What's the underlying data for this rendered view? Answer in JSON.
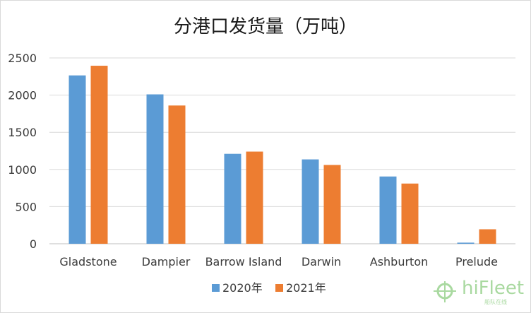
{
  "chart_data": {
    "type": "bar",
    "title": "分港口发货量（万吨）",
    "categories": [
      "Gladstone",
      "Dampier",
      "Barrow Island",
      "Darwin",
      "Ashburton",
      "Prelude"
    ],
    "series": [
      {
        "name": "2020年",
        "color": "#5b9bd5",
        "values": [
          2265,
          2010,
          1210,
          1135,
          905,
          15
        ]
      },
      {
        "name": "2021年",
        "color": "#ed7d31",
        "values": [
          2395,
          1860,
          1240,
          1060,
          810,
          195
        ]
      }
    ],
    "yticks": [
      "0",
      "500",
      "1000",
      "1500",
      "2000",
      "2500"
    ],
    "ylim": [
      0,
      2500
    ],
    "grid": true,
    "legend": "bottom"
  },
  "watermark": {
    "brand": "hiFleet",
    "tagline": "船队在线",
    "icon": "globe-crosshair-icon"
  }
}
